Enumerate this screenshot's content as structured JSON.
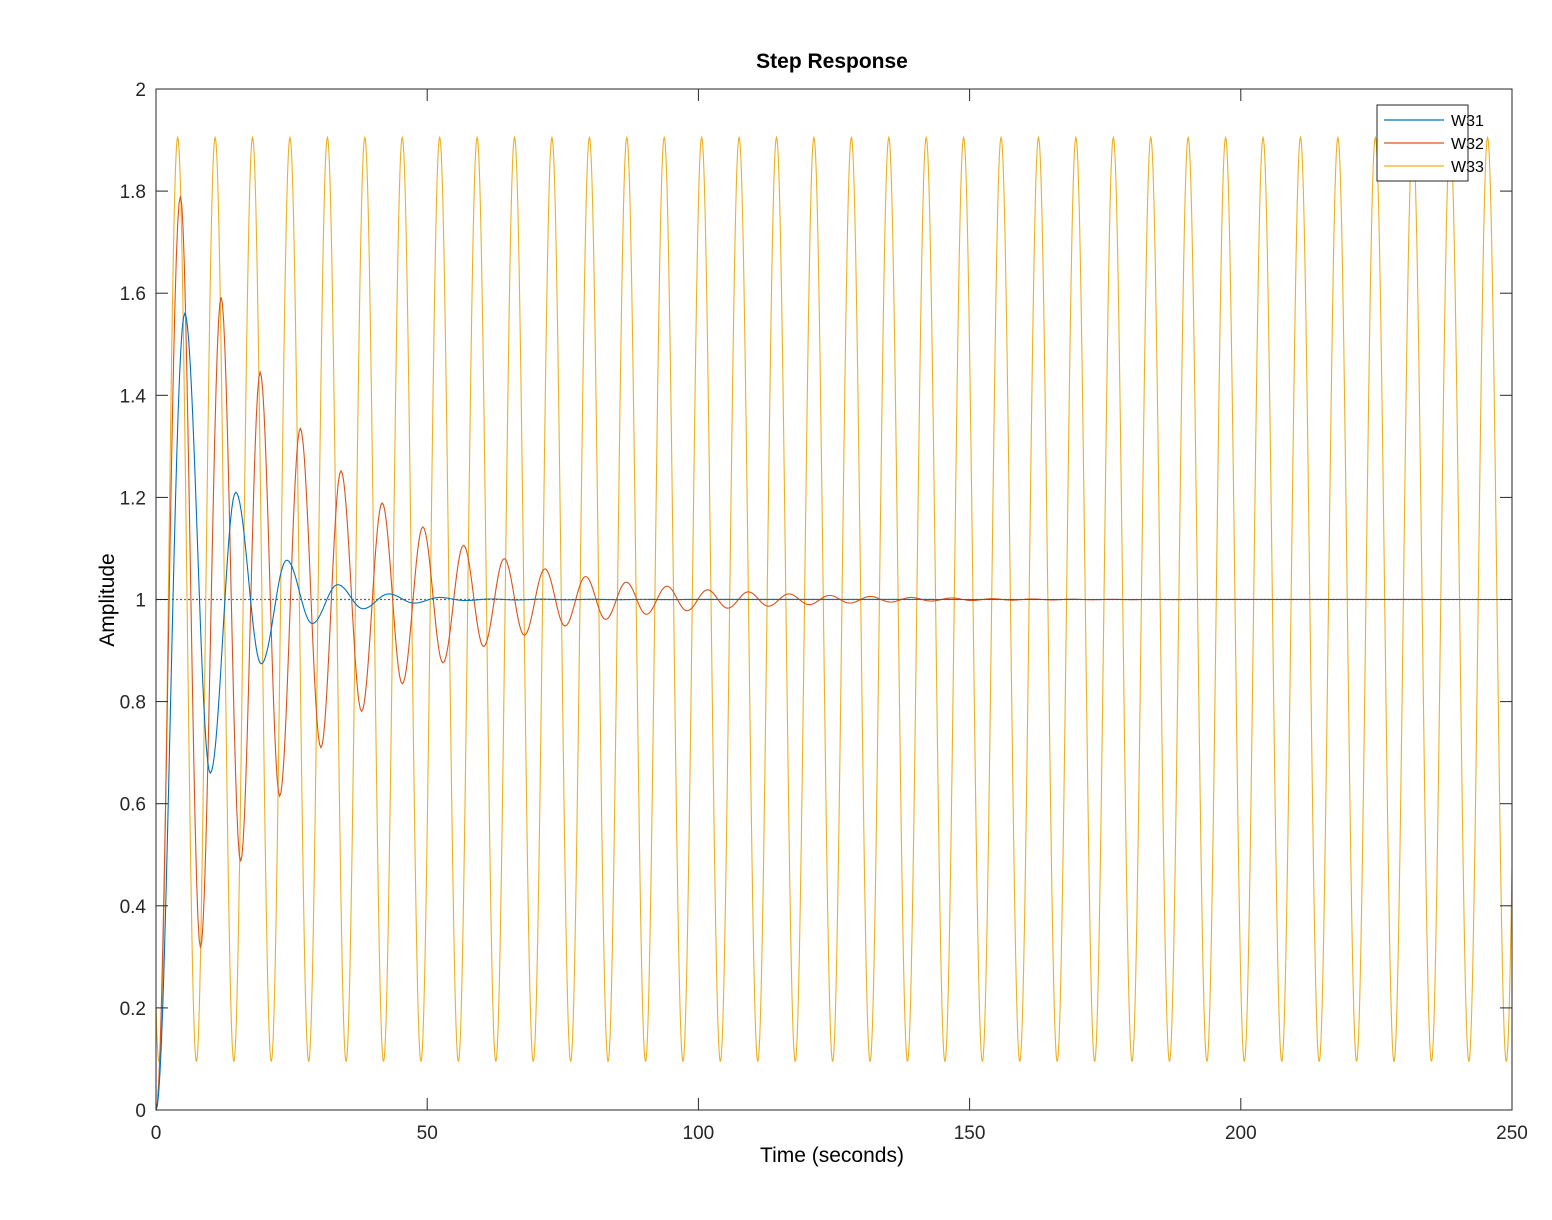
{
  "chart_data": {
    "type": "line",
    "title": "Step Response",
    "xlabel": "Time (seconds)",
    "ylabel": "Amplitude",
    "xlim": [
      0,
      250
    ],
    "ylim": [
      0,
      2
    ],
    "xticks": [
      0,
      50,
      100,
      150,
      200,
      250
    ],
    "yticks": [
      0,
      0.2,
      0.4,
      0.6,
      0.8,
      1,
      1.2,
      1.4,
      1.6,
      1.8,
      2
    ],
    "xtick_labels": [
      "0",
      "50",
      "100",
      "150",
      "200",
      "250"
    ],
    "ytick_labels": [
      "0",
      "0.2",
      "0.4",
      "0.6",
      "0.8",
      "1",
      "1.2",
      "1.4",
      "1.6",
      "1.8",
      "2"
    ],
    "grid": false,
    "legend_position": "top-right",
    "steady_state_reference": 1,
    "series": [
      {
        "name": "W31",
        "color": "#0072BD",
        "t_end": 160,
        "peaks": [
          [
            5.3,
            1.56
          ],
          [
            10.0,
            0.66
          ],
          [
            14.7,
            1.21
          ],
          [
            19.4,
            0.874
          ],
          [
            24.1,
            1.077
          ],
          [
            28.8,
            0.953
          ],
          [
            33.5,
            1.029
          ],
          [
            38.2,
            0.982
          ],
          [
            42.9,
            1.011
          ],
          [
            47.6,
            0.993
          ],
          [
            52.3,
            1.004
          ],
          [
            57.0,
            0.998
          ],
          [
            61.7,
            1.001
          ]
        ]
      },
      {
        "name": "W32",
        "color": "#D95319",
        "t_end": 250,
        "peaks": [
          [
            4.5,
            1.79
          ],
          [
            8.2,
            0.318
          ],
          [
            12.0,
            1.592
          ],
          [
            15.6,
            0.487
          ],
          [
            19.2,
            1.445
          ],
          [
            22.8,
            0.615
          ],
          [
            26.6,
            1.335
          ],
          [
            30.4,
            0.71
          ],
          [
            34.1,
            1.252
          ],
          [
            37.9,
            0.781
          ],
          [
            41.7,
            1.189
          ],
          [
            45.4,
            0.835
          ],
          [
            49.2,
            1.142
          ],
          [
            52.9,
            0.876
          ],
          [
            56.7,
            1.106
          ],
          [
            60.4,
            0.908
          ],
          [
            64.2,
            1.08
          ],
          [
            67.9,
            0.93
          ],
          [
            71.7,
            1.06
          ],
          [
            75.4,
            0.948
          ],
          [
            79.2,
            1.045
          ],
          [
            82.9,
            0.961
          ],
          [
            86.7,
            1.034
          ],
          [
            90.4,
            0.971
          ],
          [
            94.2,
            1.026
          ],
          [
            97.9,
            0.978
          ],
          [
            101.7,
            1.019
          ],
          [
            105.4,
            0.983
          ],
          [
            109.2,
            1.015
          ],
          [
            112.9,
            0.987
          ],
          [
            116.7,
            1.011
          ],
          [
            120.4,
            0.99
          ],
          [
            124.2,
            1.008
          ],
          [
            127.9,
            0.993
          ],
          [
            131.7,
            1.006
          ],
          [
            135.4,
            0.995
          ],
          [
            139.2,
            1.004
          ],
          [
            142.9,
            0.997
          ],
          [
            146.7,
            1.003
          ],
          [
            150.4,
            0.998
          ]
        ]
      },
      {
        "name": "W33",
        "color": "#EDB120",
        "t_end": 250,
        "oscillation": {
          "center": 1.0,
          "amplitude": 0.905,
          "period": 6.9,
          "first_peak_t": 4.0
        }
      }
    ]
  }
}
